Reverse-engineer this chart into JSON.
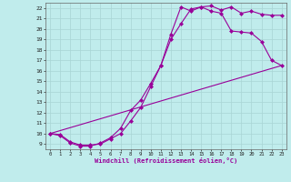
{
  "xlabel": "Windchill (Refroidissement éolien,°C)",
  "bg_color": "#c0ecec",
  "grid_color": "#a8d4d4",
  "line_color": "#990099",
  "xlim": [
    -0.5,
    23.5
  ],
  "ylim": [
    8.5,
    22.5
  ],
  "yticks": [
    9,
    10,
    11,
    12,
    13,
    14,
    15,
    16,
    17,
    18,
    19,
    20,
    21,
    22
  ],
  "xticks": [
    0,
    1,
    2,
    3,
    4,
    5,
    6,
    7,
    8,
    9,
    10,
    11,
    12,
    13,
    14,
    15,
    16,
    17,
    18,
    19,
    20,
    21,
    22,
    23
  ],
  "line1_x": [
    0,
    1,
    2,
    3,
    4,
    5,
    6,
    7,
    8,
    9,
    10,
    11,
    12,
    13,
    14,
    15,
    16,
    17,
    18,
    19,
    20,
    21,
    22,
    23
  ],
  "line1_y": [
    10.0,
    9.9,
    9.2,
    8.9,
    8.9,
    9.0,
    9.5,
    10.0,
    11.2,
    12.5,
    14.5,
    16.5,
    19.5,
    22.1,
    21.7,
    22.1,
    22.2,
    21.8,
    22.1,
    21.5,
    21.7,
    21.4,
    21.3,
    21.3
  ],
  "line2_x": [
    0,
    1,
    2,
    3,
    4,
    5,
    6,
    7,
    8,
    9,
    10,
    11,
    12,
    13,
    14,
    15,
    16,
    17,
    18,
    19,
    20,
    21,
    22,
    23
  ],
  "line2_y": [
    10.0,
    9.8,
    9.1,
    8.8,
    8.8,
    9.1,
    9.6,
    10.5,
    12.2,
    13.2,
    14.8,
    16.5,
    19.0,
    20.5,
    21.9,
    22.1,
    21.7,
    21.5,
    19.8,
    19.7,
    19.6,
    18.8,
    17.0,
    16.5
  ],
  "line3_x": [
    0,
    23
  ],
  "line3_y": [
    10.0,
    16.5
  ]
}
